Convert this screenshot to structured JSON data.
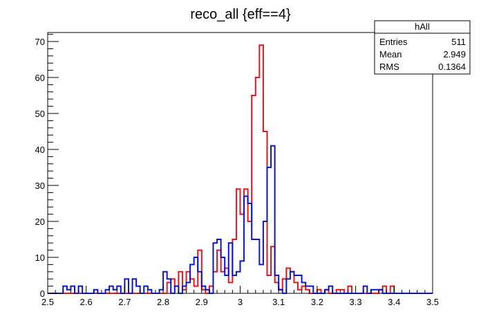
{
  "chart_data": {
    "type": "histogram",
    "title": "reco_all {eff==4}",
    "xlabel": "",
    "ylabel": "",
    "xlim": [
      2.5,
      3.5
    ],
    "ylim": [
      0,
      72.5
    ],
    "x_ticks": [
      "2.5",
      "2.6",
      "2.7",
      "2.8",
      "2.9",
      "3",
      "3.1",
      "3.2",
      "3.3",
      "3.4",
      "3.5"
    ],
    "y_ticks": [
      "0",
      "10",
      "20",
      "30",
      "40",
      "50",
      "60",
      "70"
    ],
    "bin_width": 0.01,
    "bin_start": 2.5,
    "series": [
      {
        "color": "#e8141e",
        "values": [
          0,
          0,
          0,
          0,
          0,
          0,
          0,
          0,
          0,
          0,
          0,
          0,
          0,
          0,
          0,
          0,
          0,
          0,
          0,
          0,
          0,
          0,
          0,
          0,
          0,
          0,
          0,
          0,
          0,
          0,
          0,
          3,
          4,
          2,
          6,
          1,
          6,
          4,
          2,
          12,
          1,
          0,
          2,
          6,
          12,
          6,
          7,
          3,
          15,
          29,
          22,
          29,
          20,
          55,
          60,
          69,
          45,
          5,
          13,
          3,
          1,
          4,
          7,
          6,
          3,
          1,
          2,
          1,
          0,
          0,
          1,
          0,
          1,
          0,
          0,
          1,
          1,
          0,
          2,
          0,
          0,
          0,
          0,
          0,
          0,
          0,
          1,
          2,
          0,
          2,
          0,
          0,
          0,
          0,
          0,
          0,
          0,
          0,
          0,
          0
        ]
      },
      {
        "color": "#0a14d6",
        "values": [
          0,
          0,
          0,
          0,
          2,
          1,
          2,
          0,
          2,
          0,
          0,
          0,
          1,
          0,
          0,
          1,
          2,
          1,
          2,
          0,
          4,
          0,
          4,
          2,
          0,
          2,
          1,
          0,
          0,
          1,
          6,
          4,
          0,
          2,
          0,
          2,
          3,
          8,
          10,
          6,
          2,
          1,
          0,
          14,
          15,
          10,
          5,
          14,
          5,
          6,
          9,
          27,
          25,
          15,
          15,
          8,
          20,
          35,
          41,
          5,
          1,
          0,
          4,
          6,
          5,
          5,
          3,
          2,
          2,
          0,
          0,
          0,
          1,
          2,
          0,
          0,
          0,
          0,
          0,
          0,
          0,
          0,
          2,
          0,
          1,
          1,
          1,
          0,
          0,
          0,
          0,
          0,
          0,
          0,
          0,
          0,
          0,
          0,
          0,
          0
        ]
      }
    ],
    "stats_box": {
      "name": "hAll",
      "rows": [
        {
          "label": "Entries",
          "value": "511"
        },
        {
          "label": "Mean",
          "value": "2.949"
        },
        {
          "label": "RMS",
          "value": "0.1364"
        }
      ]
    }
  }
}
